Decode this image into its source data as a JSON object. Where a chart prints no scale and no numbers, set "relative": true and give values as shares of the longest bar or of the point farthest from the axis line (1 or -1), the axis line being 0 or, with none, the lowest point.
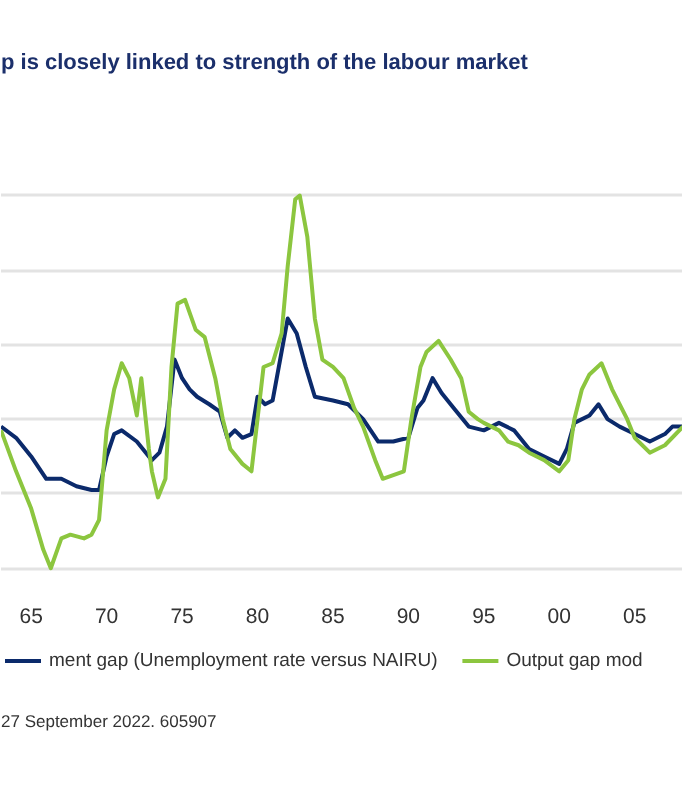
{
  "chart_data": {
    "type": "line",
    "title": "p is closely linked to strength of the labour market",
    "relative": true,
    "grid": "y",
    "legend": "bottom",
    "tick_labels": "x",
    "xlim": [
      1963,
      2008.2
    ],
    "xticks": [
      {
        "value": 1965,
        "label": "65"
      },
      {
        "value": 1970,
        "label": "70"
      },
      {
        "value": 1975,
        "label": "75"
      },
      {
        "value": 1980,
        "label": "80"
      },
      {
        "value": 1985,
        "label": "85"
      },
      {
        "value": 1990,
        "label": "90"
      },
      {
        "value": 1995,
        "label": "95"
      },
      {
        "value": 2000,
        "label": "00"
      },
      {
        "value": 2005,
        "label": "05"
      }
    ],
    "annotations": [
      "27 September 2022. 605907"
    ],
    "series": [
      {
        "name": "ment gap (Unemployment rate versus NAIRU)",
        "color": "#0b2a6b",
        "x": [
          1963,
          1964,
          1965,
          1966,
          1967,
          1968,
          1969,
          1969.5,
          1970,
          1970.5,
          1971,
          1972,
          1973,
          1973.5,
          1974,
          1974.5,
          1975,
          1975.5,
          1976,
          1976.8,
          1977.5,
          1978,
          1978.5,
          1979,
          1979.6,
          1980,
          1980.5,
          1981,
          1981.5,
          1982,
          1982.6,
          1983.2,
          1983.8,
          1985,
          1986,
          1987,
          1987.5,
          1988,
          1989,
          1990,
          1990.6,
          1991,
          1991.6,
          1992.2,
          1993,
          1994,
          1995,
          1996,
          1997,
          1998,
          1999,
          2000,
          2000.5,
          2001,
          2002,
          2002.6,
          2003.2,
          2004,
          2005,
          2006,
          2007,
          2007.5,
          2008.2
        ],
        "values": [
          0.38,
          0.35,
          0.3,
          0.24,
          0.24,
          0.22,
          0.21,
          0.21,
          0.3,
          0.36,
          0.37,
          0.34,
          0.29,
          0.31,
          0.38,
          0.56,
          0.51,
          0.48,
          0.46,
          0.44,
          0.42,
          0.35,
          0.37,
          0.35,
          0.36,
          0.46,
          0.44,
          0.45,
          0.56,
          0.67,
          0.63,
          0.54,
          0.46,
          0.45,
          0.44,
          0.4,
          0.37,
          0.34,
          0.34,
          0.35,
          0.43,
          0.45,
          0.51,
          0.47,
          0.43,
          0.38,
          0.37,
          0.39,
          0.37,
          0.32,
          0.3,
          0.28,
          0.32,
          0.39,
          0.41,
          0.44,
          0.4,
          0.38,
          0.36,
          0.34,
          0.36,
          0.38,
          0.38
        ]
      },
      {
        "name": "Output gap mod",
        "color": "#8cc63f",
        "x": [
          1963,
          1964,
          1965,
          1965.8,
          1966.3,
          1967,
          1967.6,
          1968.5,
          1969,
          1969.5,
          1970,
          1970.5,
          1971,
          1971.5,
          1972,
          1972.3,
          1972.8,
          1973,
          1973.4,
          1973.9,
          1974.3,
          1974.7,
          1975.2,
          1975.9,
          1976.5,
          1977.2,
          1977.7,
          1978.2,
          1979,
          1979.6,
          1980,
          1980.4,
          1981,
          1981.6,
          1982,
          1982.5,
          1982.8,
          1983.3,
          1983.8,
          1984.3,
          1985,
          1985.7,
          1986.4,
          1987,
          1987.8,
          1988.3,
          1989,
          1989.7,
          1990.2,
          1990.8,
          1991.2,
          1992,
          1992.8,
          1993.5,
          1994,
          1994.6,
          1995,
          1996,
          1996.6,
          1997.3,
          1998,
          1999,
          2000,
          2000.6,
          2001,
          2001.5,
          2002,
          2002.8,
          2003.5,
          2004.5,
          2005,
          2006,
          2007,
          2008.2
        ],
        "values": [
          0.37,
          0.26,
          0.16,
          0.05,
          0,
          0.08,
          0.09,
          0.08,
          0.09,
          0.13,
          0.37,
          0.48,
          0.55,
          0.51,
          0.41,
          0.51,
          0.32,
          0.26,
          0.19,
          0.24,
          0.54,
          0.71,
          0.72,
          0.64,
          0.62,
          0.51,
          0.4,
          0.32,
          0.28,
          0.26,
          0.4,
          0.54,
          0.55,
          0.63,
          0.81,
          0.99,
          1.0,
          0.89,
          0.67,
          0.56,
          0.54,
          0.51,
          0.43,
          0.38,
          0.29,
          0.24,
          0.25,
          0.26,
          0.4,
          0.54,
          0.58,
          0.61,
          0.56,
          0.51,
          0.42,
          0.4,
          0.39,
          0.37,
          0.34,
          0.33,
          0.31,
          0.29,
          0.26,
          0.29,
          0.4,
          0.48,
          0.52,
          0.55,
          0.48,
          0.4,
          0.35,
          0.31,
          0.33,
          0.38
        ]
      }
    ]
  }
}
